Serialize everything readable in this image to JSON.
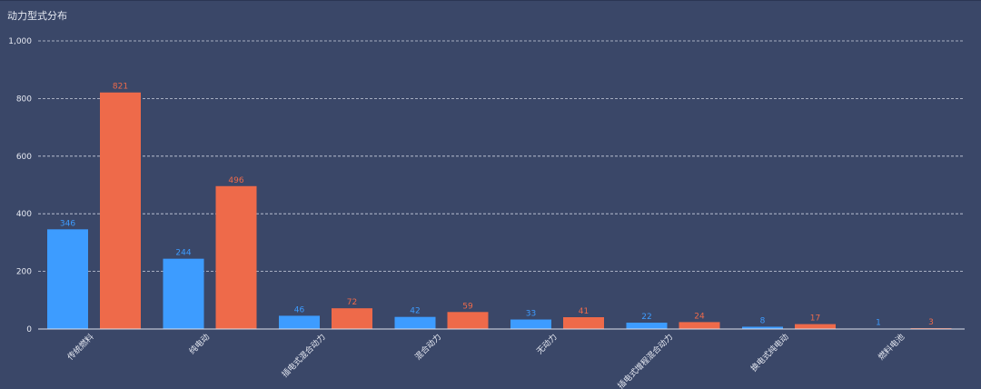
{
  "chart_data": {
    "type": "bar",
    "title": "动力型式分布",
    "categories": [
      "传统燃料",
      "纯电动",
      "插电式混合动力",
      "混合动力",
      "无动力",
      "插电式增程混合动力",
      "换电式纯电动",
      "燃料电池"
    ],
    "series": [
      {
        "values": [
          346,
          244,
          46,
          42,
          33,
          22,
          8,
          1
        ],
        "color": "#3d9cff"
      },
      {
        "values": [
          821,
          496,
          72,
          59,
          41,
          24,
          17,
          3
        ],
        "color": "#ee6a4a"
      }
    ],
    "y_ticks": [
      "0",
      "200",
      "400",
      "600",
      "800",
      "1,000"
    ],
    "ylim": [
      0,
      1000
    ],
    "grid": true,
    "data_labels": true
  }
}
